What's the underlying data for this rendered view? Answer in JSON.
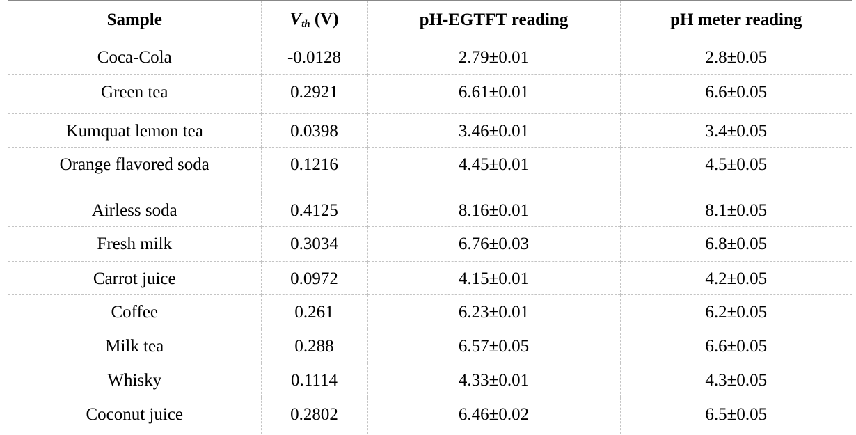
{
  "table": {
    "headers": {
      "sample": "Sample",
      "vth_symbol": "V",
      "vth_subscript": "th",
      "vth_unit": " (V)",
      "ph_egtft": "pH-EGTFT reading",
      "ph_meter": "pH meter reading"
    },
    "rows": [
      {
        "sample": "Coca-Cola",
        "vth": "-0.0128",
        "ph_egtft": "2.79±0.01",
        "ph_meter": "2.8±0.05"
      },
      {
        "sample": "Green tea",
        "vth": "0.2921",
        "ph_egtft": "6.61±0.01",
        "ph_meter": "6.6±0.05"
      },
      {
        "sample": "Kumquat lemon tea",
        "vth": "0.0398",
        "ph_egtft": "3.46±0.01",
        "ph_meter": "3.4±0.05"
      },
      {
        "sample": "Orange flavored soda",
        "vth": "0.1216",
        "ph_egtft": "4.45±0.01",
        "ph_meter": "4.5±0.05"
      },
      {
        "sample": "Airless soda",
        "vth": "0.4125",
        "ph_egtft": "8.16±0.01",
        "ph_meter": "8.1±0.05"
      },
      {
        "sample": "Fresh milk",
        "vth": "0.3034",
        "ph_egtft": "6.76±0.03",
        "ph_meter": "6.8±0.05"
      },
      {
        "sample": "Carrot juice",
        "vth": "0.0972",
        "ph_egtft": "4.15±0.01",
        "ph_meter": "4.2±0.05"
      },
      {
        "sample": "Coffee",
        "vth": "0.261",
        "ph_egtft": "6.23±0.01",
        "ph_meter": "6.2±0.05"
      },
      {
        "sample": "Milk tea",
        "vth": "0.288",
        "ph_egtft": "6.57±0.05",
        "ph_meter": "6.6±0.05"
      },
      {
        "sample": "Whisky",
        "vth": "0.1114",
        "ph_egtft": "4.33±0.01",
        "ph_meter": "4.3±0.05"
      },
      {
        "sample": "Coconut juice",
        "vth": "0.2802",
        "ph_egtft": "6.46±0.02",
        "ph_meter": "6.5±0.05"
      }
    ]
  }
}
